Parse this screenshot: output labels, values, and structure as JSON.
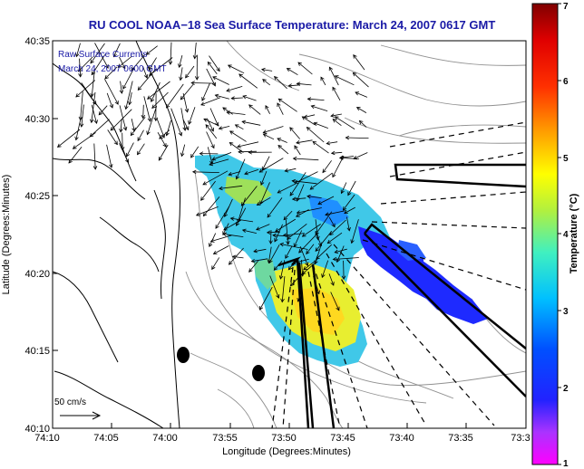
{
  "title": "RU COOL  NOAA−18  Sea Surface Temperature:  March 24, 2007 0617 GMT",
  "overlay": {
    "line1": "Raw Surface Currents",
    "line2": "March 24, 2007 0600 GMT"
  },
  "axes": {
    "xlabel": "Longitude (Degrees:Minutes)",
    "ylabel": "Latitude (Degrees:Minutes)",
    "x_ticks": [
      "74:10",
      "74:05",
      "74:00",
      "73:55",
      "73:50",
      "73:45",
      "73:40",
      "73:35",
      "73:3"
    ],
    "y_ticks": [
      "40:35",
      "40:30",
      "40:25",
      "40:20",
      "40:15",
      "40:10"
    ]
  },
  "scale_label": "50 cm/s",
  "colorbar": {
    "label": "Temperature (°C)",
    "ticks": [
      "7",
      "6",
      "5",
      "4",
      "3",
      "2",
      "1"
    ]
  },
  "colors": {
    "title": "#1a1aa6",
    "overlay_text": "#1a1aa6"
  }
}
